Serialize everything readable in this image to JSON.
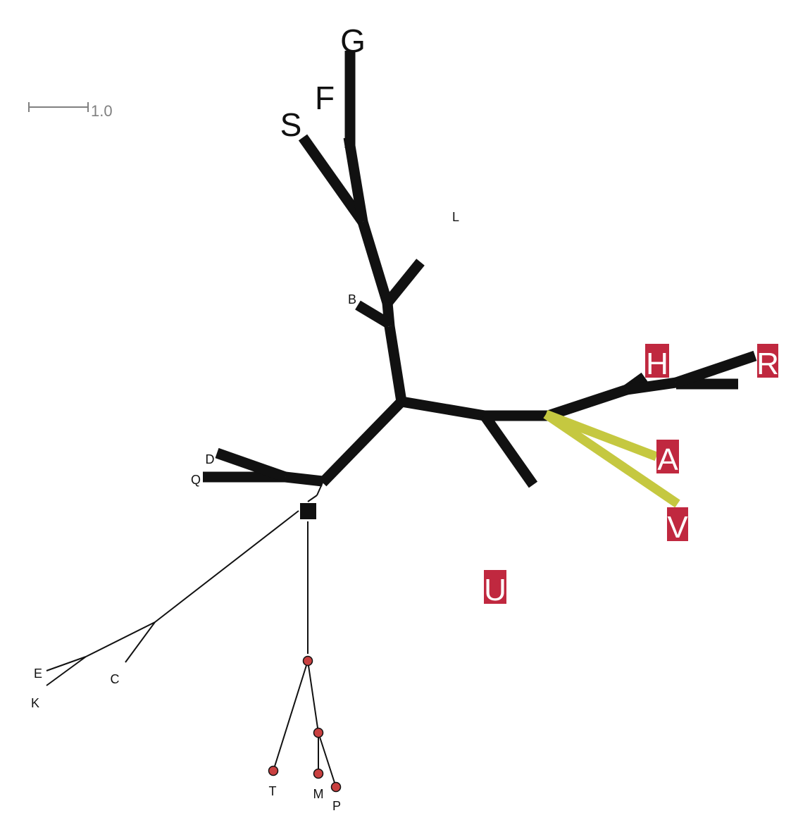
{
  "scale_bar": {
    "label": "1.0"
  },
  "colors": {
    "branch": "#111111",
    "highlight": "#c5c840",
    "badge": "#c0283f",
    "node": "#c94040",
    "scale": "#808080"
  },
  "tips": {
    "G": "G",
    "F": "F",
    "S": "S",
    "L": "L",
    "B": "B",
    "H": "H",
    "R": "R",
    "A": "A",
    "V": "V",
    "U": "U",
    "D": "D",
    "Q": "Q",
    "E": "E",
    "K": "K",
    "C": "C",
    "T": "T",
    "M": "M",
    "P": "P"
  }
}
